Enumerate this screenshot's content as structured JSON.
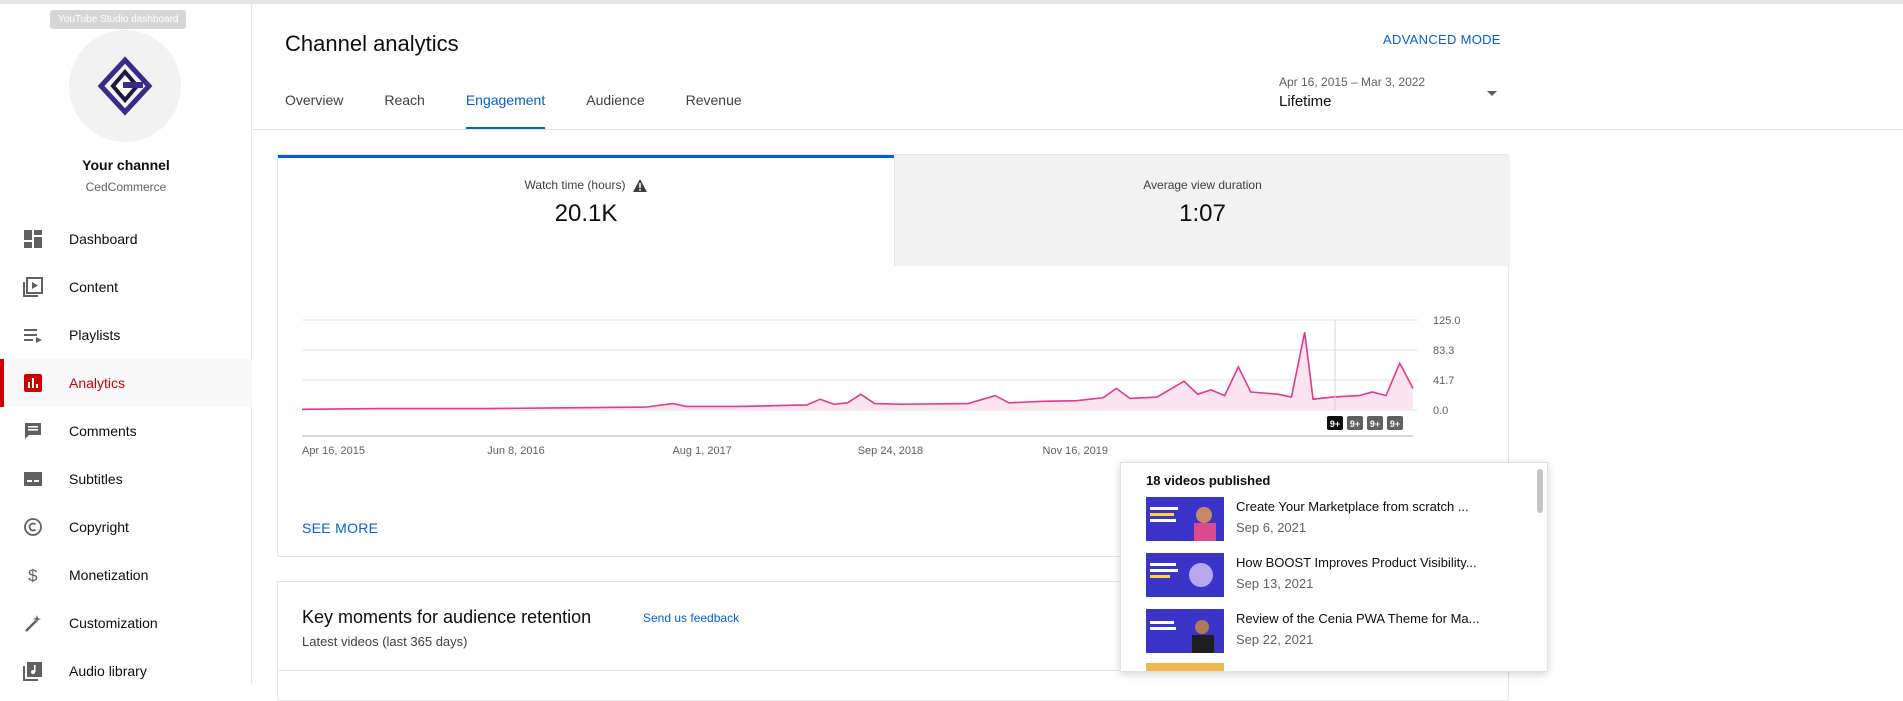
{
  "sidebar": {
    "tooltip": "YouTube Studio dashboard",
    "channel_title": "Your channel",
    "channel_name": "CedCommerce",
    "items": [
      {
        "label": "Dashboard",
        "icon": "dashboard-icon"
      },
      {
        "label": "Content",
        "icon": "content-icon"
      },
      {
        "label": "Playlists",
        "icon": "playlists-icon"
      },
      {
        "label": "Analytics",
        "icon": "analytics-icon",
        "active": true
      },
      {
        "label": "Comments",
        "icon": "comments-icon"
      },
      {
        "label": "Subtitles",
        "icon": "subtitles-icon"
      },
      {
        "label": "Copyright",
        "icon": "copyright-icon"
      },
      {
        "label": "Monetization",
        "icon": "monetization-icon"
      },
      {
        "label": "Customization",
        "icon": "customization-icon"
      },
      {
        "label": "Audio library",
        "icon": "audio-library-icon"
      }
    ]
  },
  "header": {
    "title": "Channel analytics",
    "advanced_mode": "ADVANCED MODE",
    "date_range": "Apr 16, 2015 – Mar 3, 2022",
    "date_label": "Lifetime",
    "tabs": [
      "Overview",
      "Reach",
      "Engagement",
      "Audience",
      "Revenue"
    ],
    "active_tab": "Engagement"
  },
  "metrics": {
    "watch_time_label": "Watch time (hours)",
    "watch_time_value": "20.1K",
    "avg_view_label": "Average view duration",
    "avg_view_value": "1:07"
  },
  "chart_data": {
    "type": "line",
    "ylabel_ticks": [
      "125.0",
      "83.3",
      "41.7",
      "0.0"
    ],
    "ylim": [
      0,
      125
    ],
    "x_ticks": [
      "Apr 16, 2015",
      "Jun 8, 2016",
      "Aug 1, 2017",
      "Sep 24, 2018",
      "Nov 16, 2019"
    ],
    "series": [
      {
        "color": "#e0398f",
        "points": [
          [
            "2015-04-16",
            1
          ],
          [
            "2015-10-01",
            2
          ],
          [
            "2016-06-08",
            2
          ],
          [
            "2016-12-01",
            3
          ],
          [
            "2017-06-01",
            4
          ],
          [
            "2017-08-01",
            9
          ],
          [
            "2017-09-01",
            5
          ],
          [
            "2018-01-01",
            5
          ],
          [
            "2018-06-01",
            7
          ],
          [
            "2018-07-01",
            15
          ],
          [
            "2018-08-01",
            8
          ],
          [
            "2018-09-01",
            10
          ],
          [
            "2018-10-01",
            22
          ],
          [
            "2018-11-01",
            9
          ],
          [
            "2019-01-01",
            8
          ],
          [
            "2019-06-01",
            9
          ],
          [
            "2019-08-01",
            20
          ],
          [
            "2019-09-01",
            10
          ],
          [
            "2019-11-16",
            12
          ],
          [
            "2020-02-01",
            13
          ],
          [
            "2020-04-01",
            17
          ],
          [
            "2020-05-01",
            30
          ],
          [
            "2020-06-01",
            16
          ],
          [
            "2020-08-01",
            18
          ],
          [
            "2020-10-01",
            40
          ],
          [
            "2020-11-01",
            22
          ],
          [
            "2020-12-01",
            28
          ],
          [
            "2021-01-01",
            20
          ],
          [
            "2021-02-01",
            60
          ],
          [
            "2021-03-01",
            25
          ],
          [
            "2021-05-01",
            22
          ],
          [
            "2021-06-01",
            18
          ],
          [
            "2021-07-01",
            108
          ],
          [
            "2021-07-20",
            15
          ],
          [
            "2021-09-01",
            18
          ],
          [
            "2021-11-01",
            20
          ],
          [
            "2021-12-01",
            25
          ],
          [
            "2022-01-01",
            20
          ],
          [
            "2022-02-01",
            65
          ],
          [
            "2022-03-03",
            30
          ]
        ]
      }
    ],
    "markers": [
      "9+",
      "9+",
      "9+",
      "9+"
    ]
  },
  "see_more": "SEE MORE",
  "key_moments": {
    "title": "Key moments for audience retention",
    "feedback": "Send us feedback",
    "subtitle": "Latest videos (last 365 days)"
  },
  "popup": {
    "title": "18 videos published",
    "videos": [
      {
        "title": "Create Your Marketplace from scratch ...",
        "date": "Sep 6, 2021"
      },
      {
        "title": "How BOOST Improves Product Visibility...",
        "date": "Sep 13, 2021"
      },
      {
        "title": "Review of the Cenia PWA Theme for Ma...",
        "date": "Sep 22, 2021"
      },
      {
        "title": "",
        "date": ""
      }
    ]
  }
}
